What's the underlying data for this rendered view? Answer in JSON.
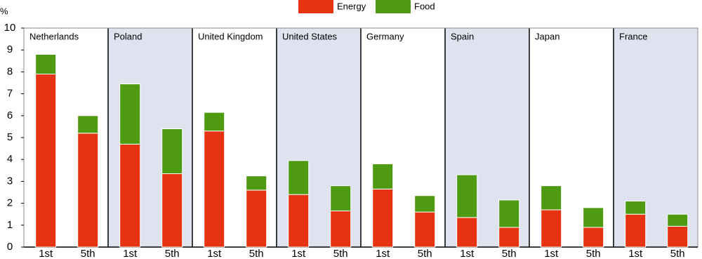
{
  "chart_data": {
    "type": "stacked_bar",
    "ylabel": "%",
    "groups": [
      "Netherlands",
      "Poland",
      "United Kingdom",
      "United States",
      "Germany",
      "Spain",
      "Japan",
      "France"
    ],
    "categories": [
      "1st",
      "5th",
      "1st",
      "5th",
      "1st",
      "5th",
      "1st",
      "5th",
      "1st",
      "5th",
      "1st",
      "5th",
      "1st",
      "5th",
      "1st",
      "5th"
    ],
    "series": [
      {
        "name": "Energy",
        "color": "#e63312",
        "values": [
          7.9,
          5.2,
          4.7,
          3.35,
          5.3,
          2.6,
          2.4,
          1.65,
          2.65,
          1.6,
          1.35,
          0.9,
          1.7,
          0.9,
          1.5,
          0.95
        ]
      },
      {
        "name": "Food",
        "color": "#4e9a10",
        "values": [
          0.9,
          0.8,
          2.75,
          2.05,
          0.85,
          0.65,
          1.55,
          1.15,
          1.15,
          0.75,
          1.95,
          1.25,
          1.1,
          0.9,
          0.6,
          0.55
        ]
      }
    ],
    "ylim": [
      0,
      10
    ],
    "yticks": [
      0,
      1,
      2,
      3,
      4,
      5,
      6,
      7,
      8,
      9,
      10
    ],
    "shaded_panel_color": "#dfe3f0"
  }
}
